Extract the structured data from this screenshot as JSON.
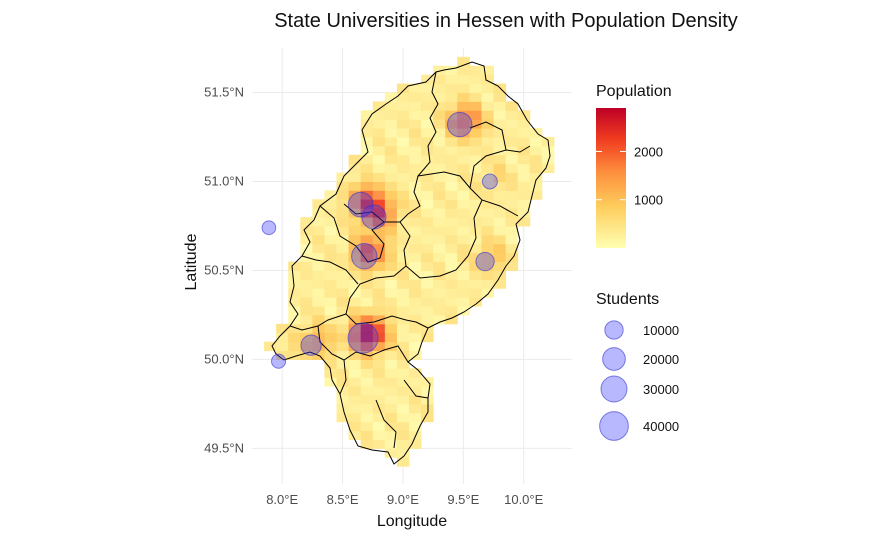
{
  "chart_data": {
    "type": "map",
    "title": "State Universities in Hessen with Population Density",
    "xlabel": "Longitude",
    "ylabel": "Latitude",
    "xlim": [
      7.75,
      10.4
    ],
    "ylim": [
      49.3,
      51.75
    ],
    "x_ticks": [
      8.0,
      8.5,
      9.0,
      9.5,
      10.0
    ],
    "x_tick_labels": [
      "8.0°E",
      "8.5°E",
      "9.0°E",
      "9.5°E",
      "10.0°E"
    ],
    "y_ticks": [
      49.5,
      50.0,
      50.5,
      51.0,
      51.5
    ],
    "y_tick_labels": [
      "49.5°N",
      "50.0°N",
      "50.5°N",
      "51.0°N",
      "51.5°N"
    ],
    "grid": true,
    "population_legend": {
      "title": "Population",
      "range": [
        0,
        2900
      ],
      "ticks": [
        1000,
        2000
      ],
      "tick_labels": [
        "1000",
        "2000"
      ],
      "colors": [
        "#ffffb2",
        "#fecc5c",
        "#fd8d3c",
        "#f03b20",
        "#bd0026"
      ]
    },
    "students_legend": {
      "title": "Students",
      "values": [
        10000,
        20000,
        30000,
        40000
      ],
      "labels": [
        "10000",
        "20000",
        "30000",
        "40000"
      ],
      "color": "#3333ff"
    },
    "universities": [
      {
        "lon": 8.67,
        "lat": 50.12,
        "students": 45000
      },
      {
        "lon": 8.65,
        "lat": 50.87,
        "students": 26000
      },
      {
        "lon": 8.68,
        "lat": 50.58,
        "students": 28000
      },
      {
        "lon": 9.47,
        "lat": 51.32,
        "students": 25000
      },
      {
        "lon": 8.24,
        "lat": 50.08,
        "students": 14000
      },
      {
        "lon": 8.76,
        "lat": 50.8,
        "students": 24000
      },
      {
        "lon": 9.68,
        "lat": 50.55,
        "students": 10000
      },
      {
        "lon": 7.89,
        "lat": 50.74,
        "students": 3000
      },
      {
        "lon": 7.97,
        "lat": 49.99,
        "students": 3500
      },
      {
        "lon": 9.72,
        "lat": 51.0,
        "students": 4500
      }
    ],
    "population_grid_resolution_deg": [
      0.1,
      0.05
    ]
  }
}
